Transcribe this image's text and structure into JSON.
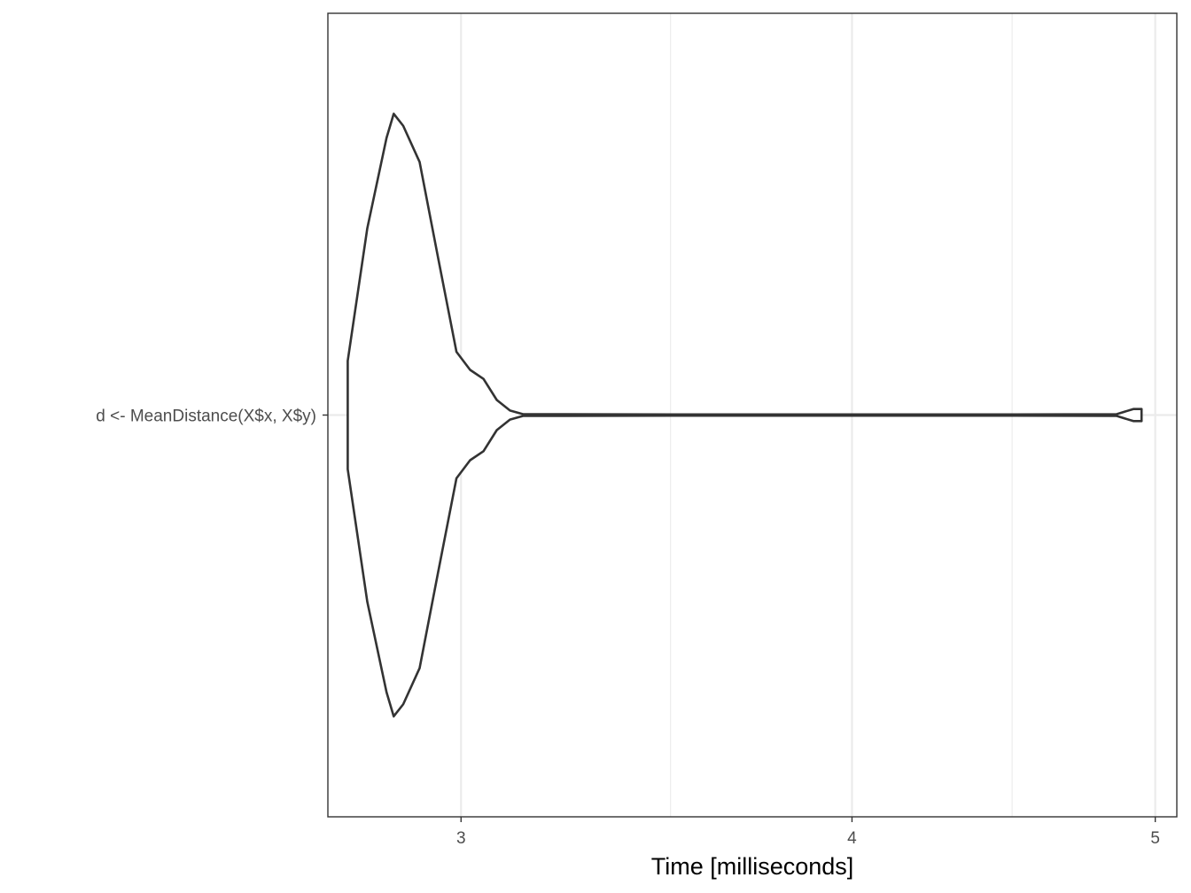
{
  "chart_data": {
    "type": "violin",
    "title": "",
    "xlabel": "Time [milliseconds]",
    "ylabel": "",
    "x_scale": "log",
    "xlim": [
      2.72,
      5.08
    ],
    "x_ticks": [
      {
        "value": 3,
        "label": "3"
      },
      {
        "value": 4,
        "label": "4"
      },
      {
        "value": 5,
        "label": "5"
      }
    ],
    "x_minor_gridlines": [
      3.5,
      4.5
    ],
    "categories": [
      "d <- MeanDistance(X$x, X$y)"
    ],
    "series": [
      {
        "category": "d <- MeanDistance(X$x, X$y)",
        "min": 2.76,
        "max": 4.95,
        "density_profile": [
          [
            2.76,
            0.18
          ],
          [
            2.8,
            0.62
          ],
          [
            2.84,
            0.92
          ],
          [
            2.855,
            1.0
          ],
          [
            2.875,
            0.96
          ],
          [
            2.91,
            0.84
          ],
          [
            2.95,
            0.52
          ],
          [
            2.99,
            0.21
          ],
          [
            3.02,
            0.15
          ],
          [
            3.05,
            0.12
          ],
          [
            3.08,
            0.05
          ],
          [
            3.11,
            0.015
          ],
          [
            3.14,
            0.003
          ],
          [
            3.5,
            0.002
          ],
          [
            4.0,
            0.002
          ],
          [
            4.5,
            0.002
          ],
          [
            4.86,
            0.003
          ],
          [
            4.92,
            0.02
          ],
          [
            4.95,
            0.02
          ]
        ]
      }
    ],
    "grid": true,
    "legend": "none",
    "colors": {
      "outline": "#333333",
      "grid": "#ebebeb",
      "panel_border": "#333333"
    }
  }
}
